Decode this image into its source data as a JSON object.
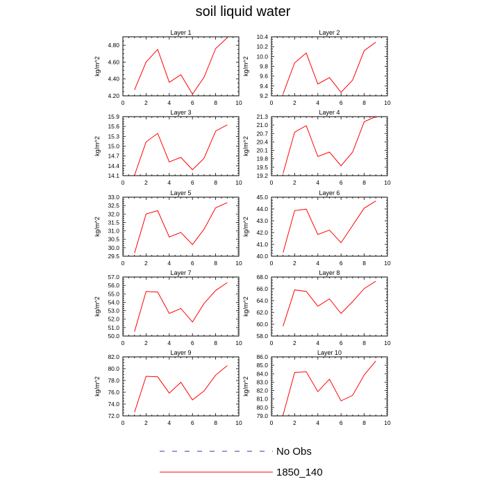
{
  "title": "soil liquid water",
  "colors": {
    "series": "#ff0000",
    "obs": "#3333aa",
    "axis": "#000000"
  },
  "legend": [
    {
      "label": "No Obs",
      "style": "dashed",
      "color": "#3333aa"
    },
    {
      "label": "1850_140",
      "style": "solid",
      "color": "#ff0000"
    }
  ],
  "chart_data": [
    {
      "type": "line",
      "title": "Layer 1",
      "ylabel": "kg/m^2",
      "xlim": [
        0,
        10
      ],
      "ylim": [
        4.2,
        4.9
      ],
      "xticks": [
        0,
        2,
        4,
        6,
        8,
        10
      ],
      "yticks": [
        4.2,
        4.4,
        4.6,
        4.8
      ],
      "ytick_labels": [
        "4.20",
        "4.40",
        "4.60",
        "4.80"
      ],
      "series": [
        {
          "name": "1850_140",
          "x": [
            1,
            2,
            3,
            4,
            5,
            6,
            7,
            8,
            9
          ],
          "values": [
            4.27,
            4.6,
            4.75,
            4.36,
            4.45,
            4.22,
            4.42,
            4.76,
            4.89
          ]
        }
      ]
    },
    {
      "type": "line",
      "title": "Layer 2",
      "ylabel": "kg/m^2",
      "xlim": [
        0,
        10
      ],
      "ylim": [
        9.2,
        10.4
      ],
      "xticks": [
        0,
        2,
        4,
        6,
        8,
        10
      ],
      "yticks": [
        9.2,
        9.4,
        9.6,
        9.8,
        10.0,
        10.2,
        10.4
      ],
      "ytick_labels": [
        "9.2",
        "9.4",
        "9.6",
        "9.8",
        "10.0",
        "10.2",
        "10.4"
      ],
      "series": [
        {
          "name": "1850_140",
          "x": [
            1,
            2,
            3,
            4,
            5,
            6,
            7,
            8,
            9
          ],
          "values": [
            9.24,
            9.87,
            10.07,
            9.44,
            9.57,
            9.27,
            9.52,
            10.12,
            10.29
          ]
        }
      ]
    },
    {
      "type": "line",
      "title": "Layer 3",
      "ylabel": "kg/m^2",
      "xlim": [
        0,
        10
      ],
      "ylim": [
        14.1,
        15.9
      ],
      "xticks": [
        0,
        2,
        4,
        6,
        8,
        10
      ],
      "yticks": [
        14.1,
        14.4,
        14.7,
        15.0,
        15.3,
        15.6,
        15.9
      ],
      "ytick_labels": [
        "14.1",
        "14.4",
        "14.7",
        "15.0",
        "15.3",
        "15.6",
        "15.9"
      ],
      "series": [
        {
          "name": "1850_140",
          "x": [
            1,
            2,
            3,
            4,
            5,
            6,
            7,
            8,
            9
          ],
          "values": [
            14.11,
            15.13,
            15.39,
            14.52,
            14.66,
            14.28,
            14.63,
            15.46,
            15.65
          ]
        }
      ]
    },
    {
      "type": "line",
      "title": "Layer 4",
      "ylabel": "kg/m^2",
      "xlim": [
        0,
        10
      ],
      "ylim": [
        19.2,
        21.3
      ],
      "xticks": [
        0,
        2,
        4,
        6,
        8,
        10
      ],
      "yticks": [
        19.2,
        19.5,
        19.8,
        20.1,
        20.4,
        20.7,
        21.0,
        21.3
      ],
      "ytick_labels": [
        "19.2",
        "19.5",
        "19.8",
        "20.1",
        "20.4",
        "20.7",
        "21.0",
        "21.3"
      ],
      "series": [
        {
          "name": "1850_140",
          "x": [
            1,
            2,
            3,
            4,
            5,
            6,
            7,
            8,
            9
          ],
          "values": [
            19.28,
            20.75,
            20.98,
            19.88,
            20.04,
            19.55,
            20.04,
            21.12,
            21.3
          ]
        }
      ]
    },
    {
      "type": "line",
      "title": "Layer 5",
      "ylabel": "kg/m^2",
      "xlim": [
        0,
        10
      ],
      "ylim": [
        29.5,
        33.0
      ],
      "xticks": [
        0,
        2,
        4,
        6,
        8,
        10
      ],
      "yticks": [
        29.5,
        30.0,
        30.5,
        31.0,
        31.5,
        32.0,
        32.5,
        33.0
      ],
      "ytick_labels": [
        "29.5",
        "30.0",
        "30.5",
        "31.0",
        "31.5",
        "32.0",
        "32.5",
        "33.0"
      ],
      "series": [
        {
          "name": "1850_140",
          "x": [
            1,
            2,
            3,
            4,
            5,
            6,
            7,
            8,
            9
          ],
          "values": [
            29.68,
            32.0,
            32.2,
            30.64,
            30.91,
            30.19,
            31.1,
            32.37,
            32.68
          ]
        }
      ]
    },
    {
      "type": "line",
      "title": "Layer 6",
      "ylabel": "kg/m^2",
      "xlim": [
        0,
        10
      ],
      "ylim": [
        40.0,
        45.0
      ],
      "xticks": [
        0,
        2,
        4,
        6,
        8,
        10
      ],
      "yticks": [
        40.0,
        41.0,
        42.0,
        43.0,
        44.0,
        45.0
      ],
      "ytick_labels": [
        "40.0",
        "41.0",
        "42.0",
        "43.0",
        "44.0",
        "45.0"
      ],
      "series": [
        {
          "name": "1850_140",
          "x": [
            1,
            2,
            3,
            4,
            5,
            6,
            7,
            8,
            9
          ],
          "values": [
            40.31,
            43.86,
            43.99,
            41.84,
            42.21,
            41.14,
            42.61,
            44.07,
            44.68
          ]
        }
      ]
    },
    {
      "type": "line",
      "title": "Layer 7",
      "ylabel": "kg/m^2",
      "xlim": [
        0,
        10
      ],
      "ylim": [
        50.0,
        57.0
      ],
      "xticks": [
        0,
        2,
        4,
        6,
        8,
        10
      ],
      "yticks": [
        50.0,
        51.0,
        52.0,
        53.0,
        54.0,
        55.0,
        56.0,
        57.0
      ],
      "ytick_labels": [
        "50.0",
        "51.0",
        "52.0",
        "53.0",
        "54.0",
        "55.0",
        "56.0",
        "57.0"
      ],
      "series": [
        {
          "name": "1850_140",
          "x": [
            1,
            2,
            3,
            4,
            5,
            6,
            7,
            8,
            9
          ],
          "values": [
            50.52,
            55.28,
            55.22,
            52.68,
            53.27,
            51.66,
            53.86,
            55.4,
            56.34
          ]
        }
      ]
    },
    {
      "type": "line",
      "title": "Layer 8",
      "ylabel": "kg/m^2",
      "xlim": [
        0,
        10
      ],
      "ylim": [
        58.0,
        68.0
      ],
      "xticks": [
        0,
        2,
        4,
        6,
        8,
        10
      ],
      "yticks": [
        58.0,
        60.0,
        62.0,
        64.0,
        66.0,
        68.0
      ],
      "ytick_labels": [
        "58.0",
        "60.0",
        "62.0",
        "64.0",
        "66.0",
        "68.0"
      ],
      "series": [
        {
          "name": "1850_140",
          "x": [
            1,
            2,
            3,
            4,
            5,
            6,
            7,
            8,
            9
          ],
          "values": [
            59.67,
            65.81,
            65.56,
            63.05,
            64.3,
            61.82,
            63.84,
            66.05,
            67.28
          ]
        }
      ]
    },
    {
      "type": "line",
      "title": "Layer 9",
      "ylabel": "kg/m^2",
      "xlim": [
        0,
        10
      ],
      "ylim": [
        72.0,
        82.0
      ],
      "xticks": [
        0,
        2,
        4,
        6,
        8,
        10
      ],
      "yticks": [
        72.0,
        74.0,
        76.0,
        78.0,
        80.0,
        82.0
      ],
      "ytick_labels": [
        "72.0",
        "74.0",
        "76.0",
        "78.0",
        "80.0",
        "82.0"
      ],
      "series": [
        {
          "name": "1850_140",
          "x": [
            1,
            2,
            3,
            4,
            5,
            6,
            7,
            8,
            9
          ],
          "values": [
            72.6,
            78.71,
            78.61,
            75.86,
            77.68,
            74.71,
            76.21,
            78.91,
            80.52
          ]
        }
      ]
    },
    {
      "type": "line",
      "title": "Layer 10",
      "ylabel": "kg/m^2",
      "xlim": [
        0,
        10
      ],
      "ylim": [
        79.0,
        86.0
      ],
      "xticks": [
        0,
        2,
        4,
        6,
        8,
        10
      ],
      "yticks": [
        79.0,
        80.0,
        81.0,
        82.0,
        83.0,
        84.0,
        85.0,
        86.0
      ],
      "ytick_labels": [
        "79.0",
        "80.0",
        "81.0",
        "82.0",
        "83.0",
        "84.0",
        "85.0",
        "86.0"
      ],
      "series": [
        {
          "name": "1850_140",
          "x": [
            1,
            2,
            3,
            4,
            5,
            6,
            7,
            8,
            9
          ],
          "values": [
            79.1,
            84.15,
            84.23,
            81.87,
            83.35,
            80.78,
            81.44,
            83.86,
            85.52
          ]
        }
      ]
    }
  ]
}
